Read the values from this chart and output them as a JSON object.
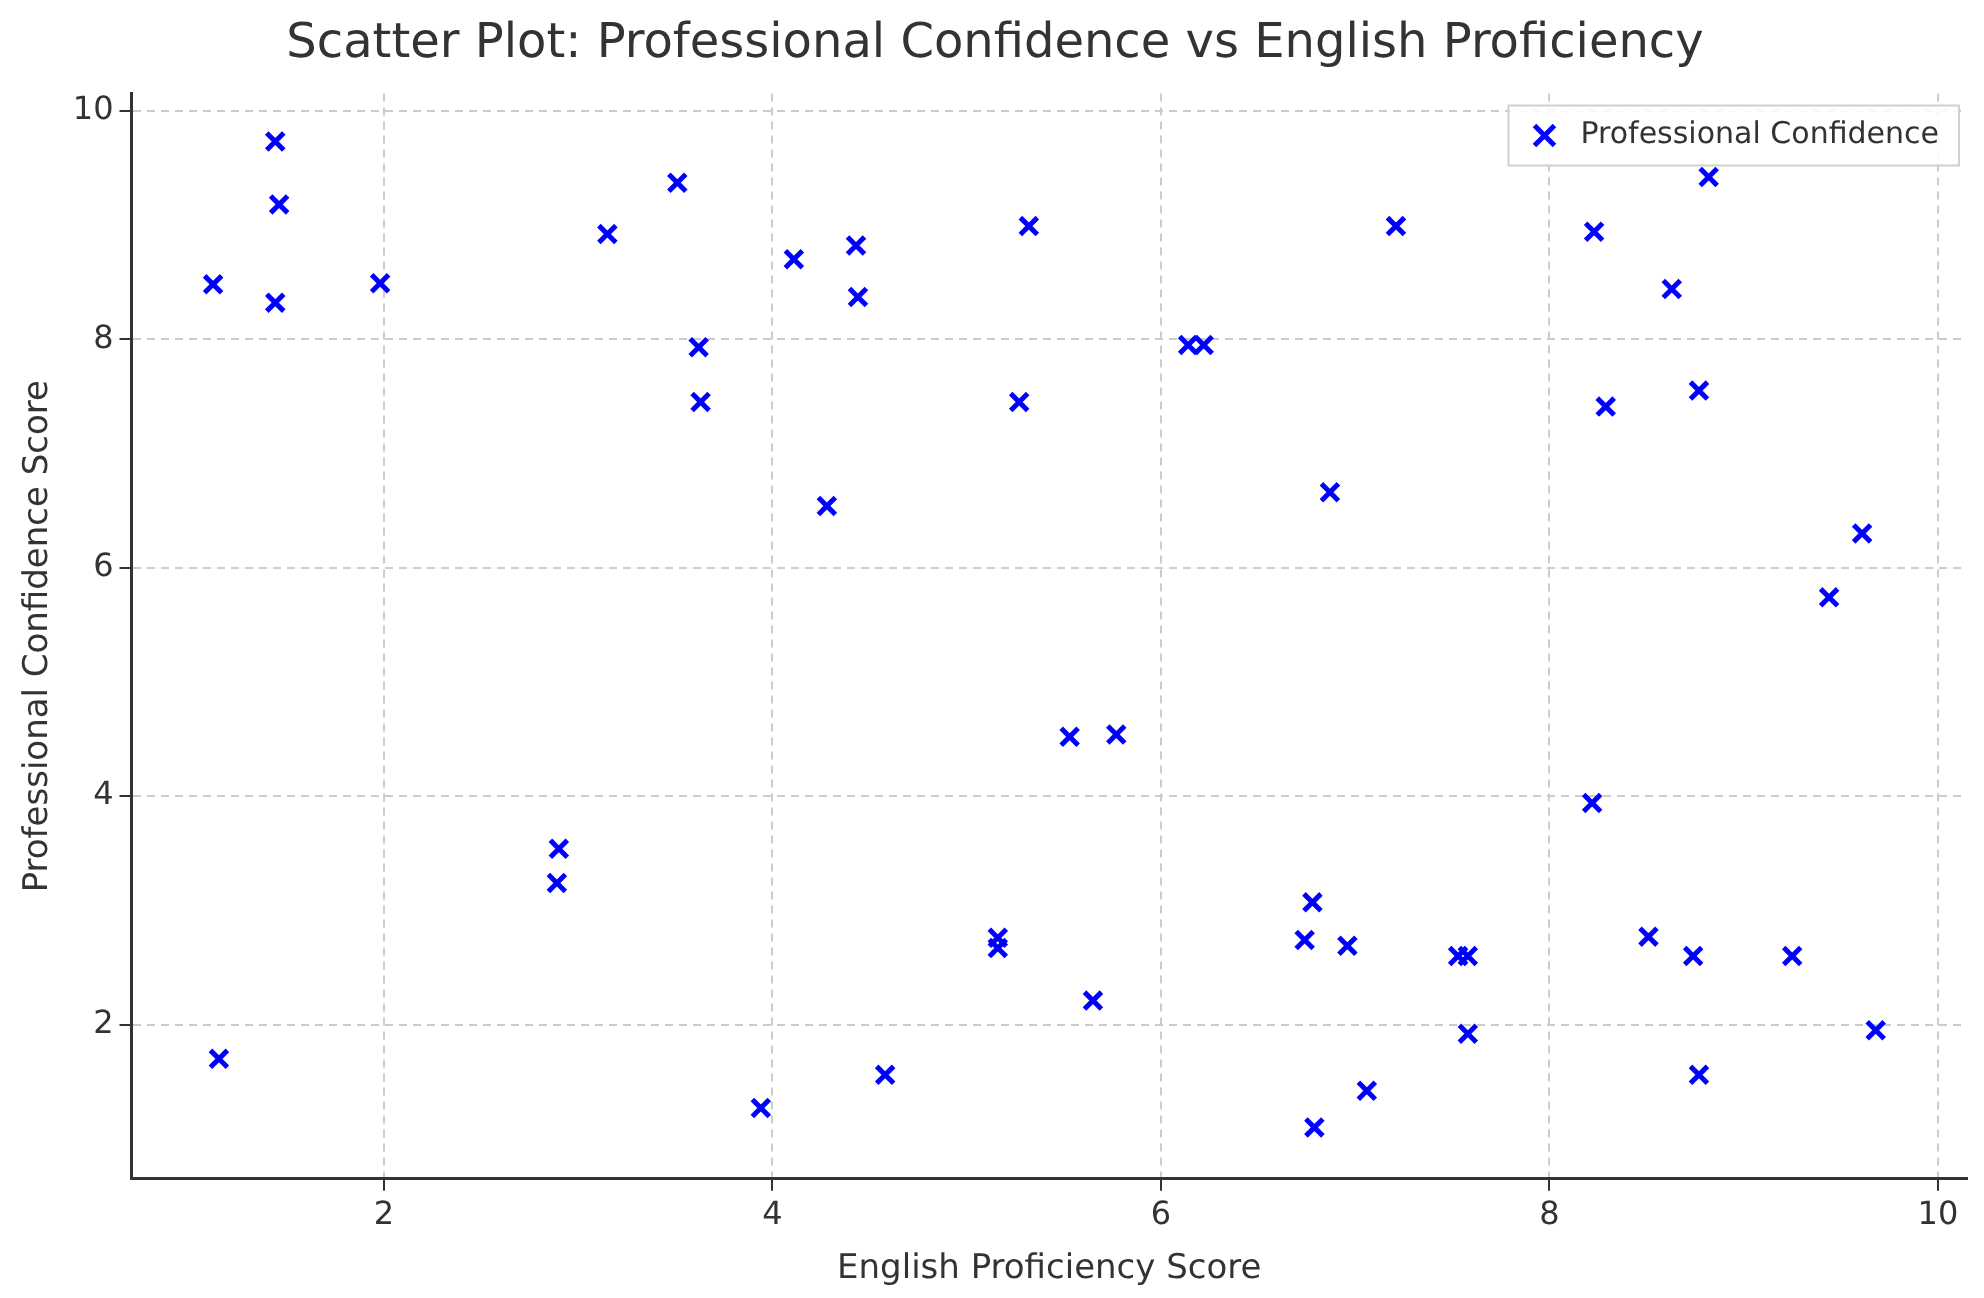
{
  "chart_data": {
    "type": "scatter",
    "title": "Scatter Plot: Professional Confidence vs English Proficiency",
    "xlabel": "English Proficiency Score",
    "ylabel": "Professional Confidence Score",
    "x": [
      1.12,
      1.44,
      1.46,
      1.44,
      1.98,
      1.15,
      2.9,
      2.89,
      3.15,
      3.51,
      3.62,
      3.63,
      4.11,
      4.43,
      4.44,
      4.28,
      3.94,
      4.58,
      5.32,
      5.27,
      5.16,
      5.16,
      5.53,
      5.77,
      5.65,
      6.14,
      6.22,
      6.87,
      7.21,
      6.78,
      6.74,
      6.96,
      6.79,
      7.06,
      7.53,
      7.58,
      7.58,
      8.23,
      8.63,
      8.82,
      8.29,
      8.77,
      8.22,
      8.51,
      8.74,
      8.77,
      9.25,
      9.44,
      9.61,
      9.68
    ],
    "series": [
      {
        "name": "Professional Confidence",
        "color": "#0000ff",
        "values": [
          8.48,
          9.73,
          9.18,
          8.32,
          8.49,
          1.7,
          3.54,
          3.24,
          8.92,
          9.37,
          7.93,
          7.45,
          8.7,
          8.82,
          8.37,
          6.54,
          1.27,
          1.56,
          8.99,
          7.45,
          2.76,
          2.67,
          4.52,
          4.54,
          2.21,
          7.95,
          7.95,
          6.66,
          8.99,
          3.07,
          2.74,
          2.69,
          1.1,
          1.42,
          2.6,
          2.6,
          1.92,
          8.94,
          8.44,
          9.42,
          7.41,
          7.55,
          3.94,
          2.77,
          2.6,
          1.56,
          2.6,
          5.74,
          6.3,
          1.95
        ]
      }
    ],
    "xlim": [
      0.7,
      10.15
    ],
    "ylim": [
      0.65,
      10.15
    ],
    "xticks": [
      2,
      4,
      6,
      8,
      10
    ],
    "yticks": [
      2,
      4,
      6,
      8,
      10
    ],
    "grid": true,
    "legend": "top right",
    "marker": "cross"
  }
}
